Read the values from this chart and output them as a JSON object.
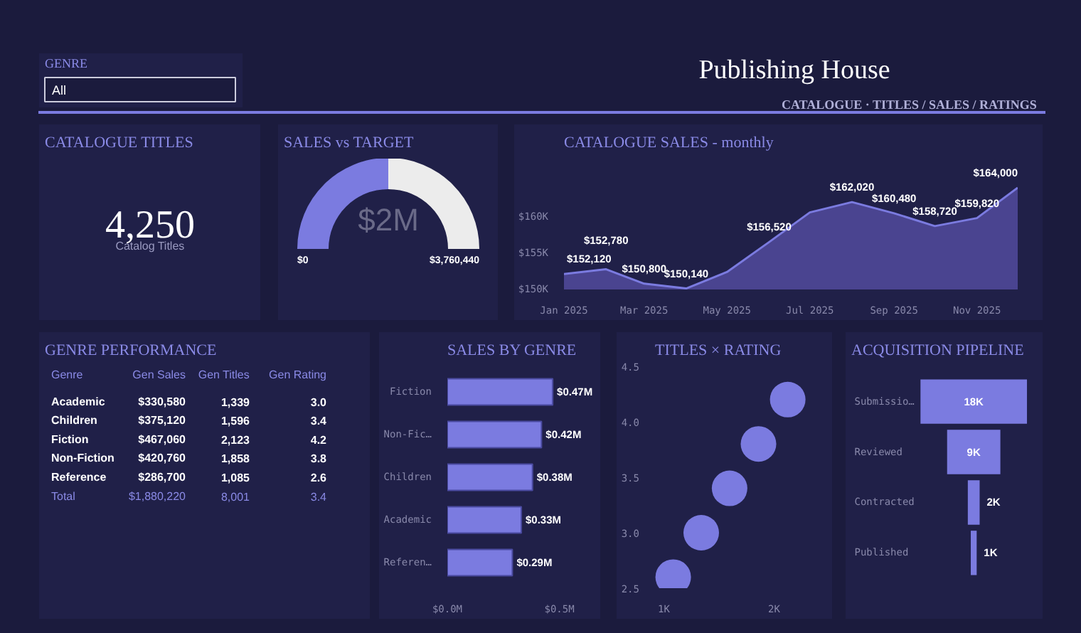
{
  "chart_data": [
    {
      "type": "other",
      "title": "Publishing House",
      "subtitle": "CATALOGUE  ·  TITLES / SALES / RATINGS",
      "annotations": [
        "GENRE",
        "All"
      ]
    },
    {
      "type": "other",
      "title": "CATALOGUE TITLES",
      "annotations": [
        "4,250",
        "Catalog Titles"
      ]
    },
    {
      "type": "donut",
      "title": "SALES vs TARGET",
      "categories": [
        null,
        null
      ],
      "values": [
        50,
        50
      ],
      "colors": [
        "#7b7be0",
        "#ececec"
      ],
      "annotations": [
        "$2M",
        "$0",
        "$3,760,440"
      ]
    },
    {
      "type": "area",
      "title": "CATALOGUE SALES - monthly",
      "color": "#7b7be0",
      "x": [
        "2025-01",
        "2025-02",
        "2025-03",
        "2025-04",
        "2025-05",
        "2025-06",
        "2025-07",
        "2025-08",
        "2025-09",
        "2025-10",
        "2025-11",
        "2025-12"
      ],
      "values": [
        152120,
        152780,
        150800,
        150140,
        152400,
        156520,
        160600,
        162020,
        160480,
        158720,
        159820,
        164000
      ],
      "value_labels": [
        "$152,120",
        "$152,780",
        "$150,800",
        "$150,140",
        null,
        "$156,520",
        null,
        "$162,020",
        "$160,480",
        "$158,720",
        "$159,820",
        "$164,000"
      ],
      "xlim": [
        "2025-01",
        "2025-12"
      ],
      "xticks": [
        {
          "value": "2025-01",
          "label": "Jan 2025"
        },
        {
          "value": "2025-03",
          "label": "Mar 2025"
        },
        {
          "value": "2025-05",
          "label": "May 2025"
        },
        {
          "value": "2025-07",
          "label": "Jul 2025"
        },
        {
          "value": "2025-09",
          "label": "Sep 2025"
        },
        {
          "value": "2025-11",
          "label": "Nov 2025"
        }
      ],
      "ylim": [
        150000,
        168000
      ],
      "yticks": [
        {
          "value": 150000,
          "label": "$150K"
        },
        {
          "value": 155000,
          "label": "$155K"
        },
        {
          "value": 160000,
          "label": "$160K"
        }
      ]
    },
    {
      "type": "other",
      "title": "GENRE PERFORMANCE",
      "categories": [
        "Genre",
        "Gen Sales",
        "Gen Titles",
        "Gen Rating"
      ],
      "annotations": [
        "Academic",
        "$330,580",
        "1,339",
        "3.0",
        "Children",
        "$375,120",
        "1,596",
        "3.4",
        "Fiction",
        "$467,060",
        "2,123",
        "4.2",
        "Non-Fiction",
        "$420,760",
        "1,858",
        "3.8",
        "Reference",
        "$286,700",
        "1,085",
        "2.6",
        "Total",
        "$1,880,220",
        "8,001",
        "3.4"
      ]
    },
    {
      "type": "bar",
      "orientation": "horizontal",
      "title": "SALES BY GENRE",
      "color": "#7b7be0",
      "categories": [
        "Fiction",
        "Non-Fic…",
        "Children",
        "Academic",
        "Referen…"
      ],
      "values": [
        0.47,
        0.42,
        0.38,
        0.33,
        0.29
      ],
      "value_labels": [
        "$0.47M",
        "$0.42M",
        "$0.38M",
        "$0.33M",
        "$0.29M"
      ],
      "xlim": [
        0,
        0.66
      ],
      "xticks": [
        {
          "value": 0,
          "label": "$0.0M"
        },
        {
          "value": 0.5,
          "label": "$0.5M"
        }
      ]
    },
    {
      "type": "scatter",
      "title": "TITLES × RATING",
      "color": "#7b7be0",
      "marker": "circle",
      "x": [
        1339,
        1596,
        2123,
        1858,
        1085
      ],
      "values": [
        3.0,
        3.4,
        4.2,
        3.8,
        2.6
      ],
      "xlim": [
        920,
        2480
      ],
      "xticks": [
        {
          "value": 1000,
          "label": "1K"
        },
        {
          "value": 2000,
          "label": "2K"
        }
      ],
      "ylim": [
        2.5,
        4.5
      ],
      "yticks": [
        {
          "value": 2.5,
          "label": "2.5"
        },
        {
          "value": 3.0,
          "label": "3.0"
        },
        {
          "value": 3.5,
          "label": "3.5"
        },
        {
          "value": 4.0,
          "label": "4.0"
        },
        {
          "value": 4.5,
          "label": "4.5"
        }
      ]
    },
    {
      "type": "other",
      "title": "ACQUISITION PIPELINE",
      "categories": [
        "Submissio…",
        "Reviewed",
        "Contracted",
        "Published"
      ],
      "values": [
        18,
        9,
        2,
        1
      ],
      "value_labels": [
        "18K",
        "9K",
        "2K",
        "1K"
      ]
    }
  ]
}
